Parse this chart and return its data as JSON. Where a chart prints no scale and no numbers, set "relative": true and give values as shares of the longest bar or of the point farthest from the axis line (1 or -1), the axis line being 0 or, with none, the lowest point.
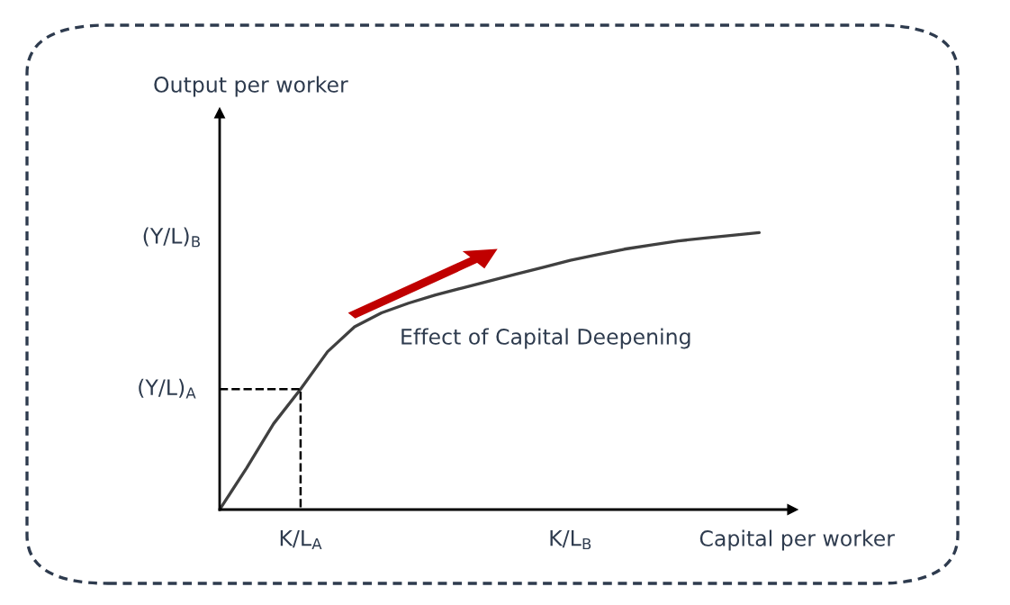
{
  "chart_data": {
    "type": "line",
    "relative": true,
    "xlabel": "Capital per worker",
    "categories": [
      null,
      null,
      null,
      "K/L$_{A}$",
      null,
      null,
      null,
      null,
      null,
      null,
      null,
      null,
      null,
      "K/L$_{B}$",
      null,
      null,
      null,
      null,
      null,
      null,
      null
    ],
    "series": [
      {
        "color": "#404040",
        "values": [
          0,
          0.15,
          0.31,
          0.435,
          0.57,
          0.66,
          0.71,
          0.745,
          0.775,
          0.8,
          0.825,
          0.85,
          0.875,
          0.9,
          0.92,
          0.94,
          0.955,
          0.97,
          0.98,
          0.99,
          1
        ]
      }
    ],
    "ref_lines": [
      {
        "axis": "y",
        "value": 0.435,
        "label": "(Y/L)$_{A}$",
        "line_style": "dashed"
      }
    ],
    "annotations": [
      "Output per worker",
      "(Y/L)$_{B}$",
      "Effect of Capital Deepening"
    ],
    "grid": false,
    "marker": "none",
    "line_style": "solid"
  }
}
